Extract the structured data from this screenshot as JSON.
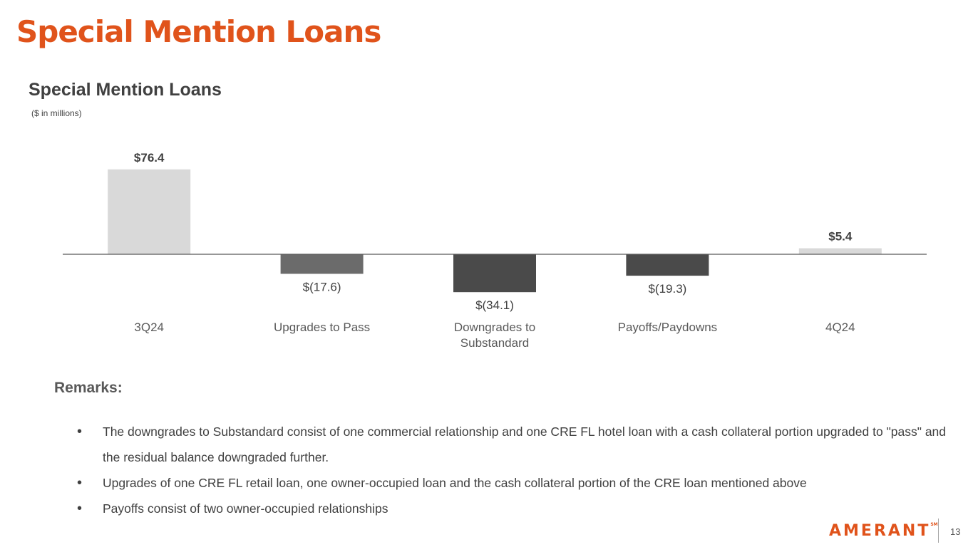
{
  "page": {
    "title": "Special Mention Loans",
    "page_number": "13",
    "logo_text": "AMERANT",
    "logo_mark": "SM"
  },
  "chart_data": {
    "type": "bar",
    "chart_style": "waterfall",
    "title": "Special Mention Loans",
    "subtitle": "($ in millions)",
    "categories": [
      "3Q24",
      "Upgrades to Pass",
      "Downgrades to Substandard",
      "Payoffs/Paydowns",
      "4Q24"
    ],
    "category_lines": [
      [
        "3Q24"
      ],
      [
        "Upgrades to Pass"
      ],
      [
        "Downgrades to",
        "Substandard"
      ],
      [
        "Payoffs/Paydowns"
      ],
      [
        "4Q24"
      ]
    ],
    "values": [
      76.4,
      -17.6,
      -34.1,
      -19.3,
      5.4
    ],
    "data_labels": [
      "$76.4",
      "$(17.6)",
      "$(34.1)",
      "$(19.3)",
      "$5.4"
    ],
    "label_bold": [
      true,
      false,
      false,
      false,
      true
    ],
    "colors": [
      "#d9d9d9",
      "#6b6b6b",
      "#4a4a4a",
      "#4a4a4a",
      "#d9d9d9"
    ],
    "ylim": [
      -40,
      80
    ],
    "grid": false,
    "legend": "none",
    "axis_color": "#595959"
  },
  "remarks": {
    "heading": "Remarks:",
    "items": [
      "The downgrades to Substandard consist of one commercial relationship and one CRE FL hotel loan with a cash collateral portion upgraded to \"pass\" and the residual balance downgraded further.",
      "Upgrades of one CRE FL retail loan, one owner-occupied loan and the cash collateral portion of the CRE loan mentioned above",
      "Payoffs consist of two owner-occupied relationships"
    ]
  }
}
